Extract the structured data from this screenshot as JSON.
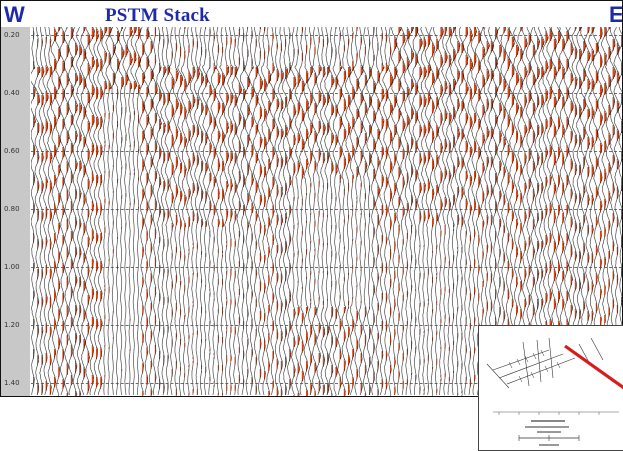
{
  "section": {
    "title": "PSTM Stack",
    "west_label": "W",
    "east_label": "E",
    "colors": {
      "title": "#1f2aa8",
      "trace_fill": "#cc4a1e",
      "trace_line": "#111111",
      "axis_strip": "#c8c8c8"
    }
  },
  "time_axis": {
    "ticks": [
      "0.20",
      "0.40",
      "0.60",
      "0.80",
      "1.00",
      "1.20",
      "1.40"
    ]
  },
  "base_map_inset": {
    "colors": {
      "profile_line": "#d81b1b",
      "survey_lines": "#333333"
    }
  }
}
